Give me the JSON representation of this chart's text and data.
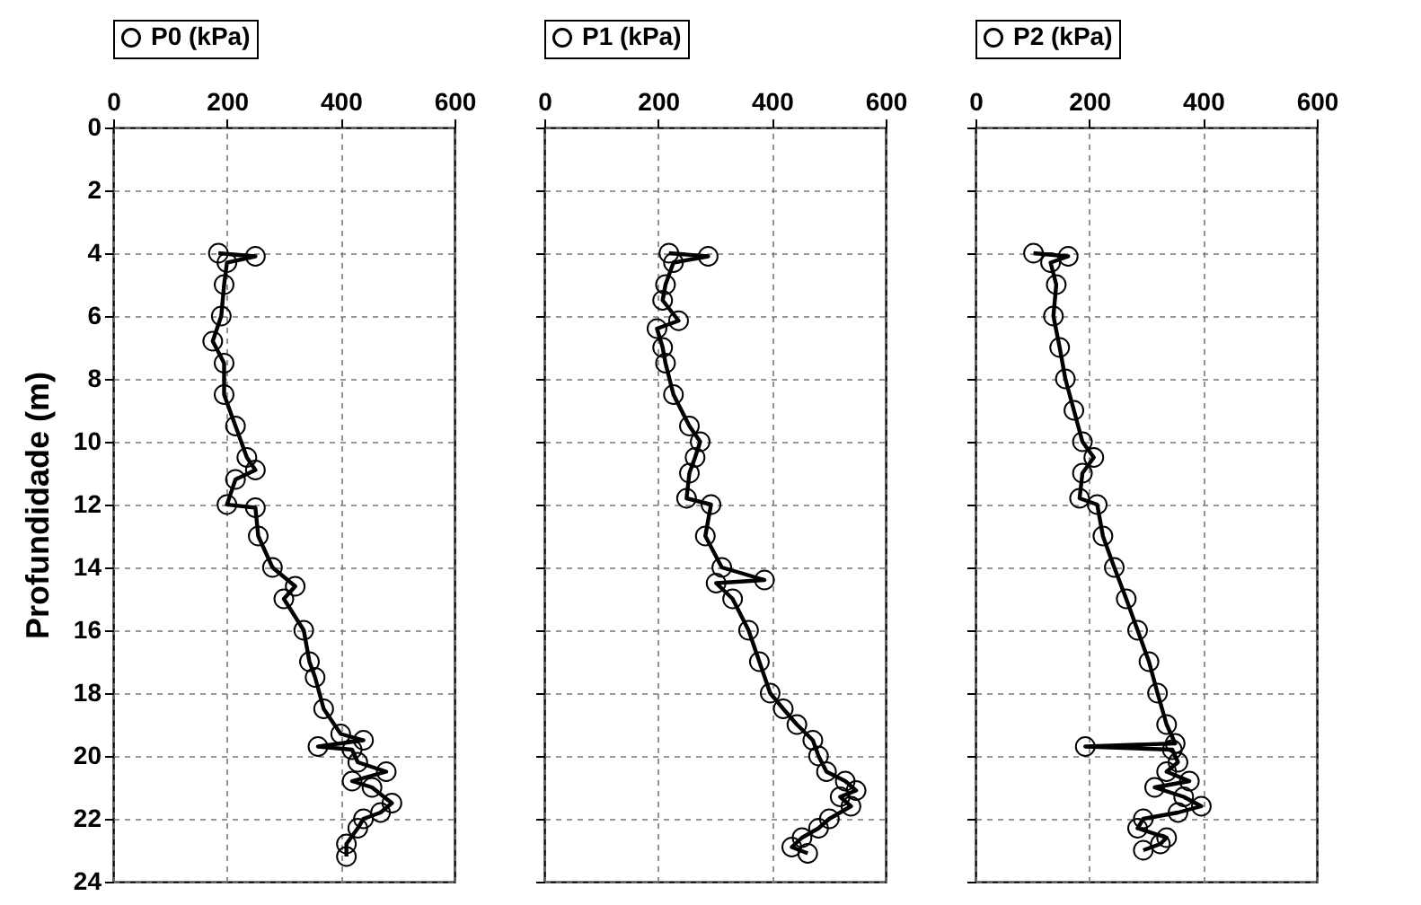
{
  "chart_data": [
    {
      "type": "line",
      "ylabel": "Profundidade (m)",
      "xlim": [
        0,
        600
      ],
      "xticks": [
        0,
        200,
        400,
        600
      ],
      "ylim": [
        24,
        0
      ],
      "yticks": [
        0,
        2,
        4,
        6,
        8,
        10,
        12,
        14,
        16,
        18,
        20,
        22,
        24
      ],
      "grid": true,
      "legend": "top",
      "marker": "circle",
      "line_style": "solid",
      "series": [
        {
          "name": "P0 (kPa)",
          "color": "#000000",
          "x": [
            185,
            250,
            200,
            195,
            190,
            175,
            195,
            195,
            215,
            235,
            250,
            215,
            200,
            250,
            255,
            280,
            320,
            300,
            335,
            345,
            355,
            370,
            400,
            440,
            360,
            420,
            430,
            480,
            420,
            455,
            490,
            470,
            440,
            430,
            410,
            410
          ],
          "values": [
            4.0,
            4.1,
            4.3,
            5,
            6,
            6.8,
            7.5,
            8.5,
            9.5,
            10.5,
            10.9,
            11.2,
            12.0,
            12.1,
            13,
            14,
            14.6,
            15,
            16,
            17,
            17.5,
            18.5,
            19.3,
            19.5,
            19.7,
            19.8,
            20.2,
            20.5,
            20.8,
            21,
            21.5,
            21.8,
            22,
            22.3,
            22.8,
            23.2
          ]
        }
      ]
    },
    {
      "type": "line",
      "xlim": [
        0,
        600
      ],
      "xticks": [
        0,
        200,
        400,
        600
      ],
      "ylim": [
        24,
        0
      ],
      "yticks": [
        0,
        2,
        4,
        6,
        8,
        10,
        12,
        14,
        16,
        18,
        20,
        22,
        24
      ],
      "grid": true,
      "legend": "top",
      "marker": "circle",
      "line_style": "solid",
      "tick_labels": "x",
      "series": [
        {
          "name": "P1 (kPa)",
          "color": "#000000",
          "x": [
            219,
            288,
            227,
            213,
            208,
            236,
            198,
            208,
            213,
            227,
            255,
            274,
            265,
            255,
            250,
            293,
            283,
            312,
            387,
            302,
            331,
            359,
            378,
            397,
            420,
            444,
            472,
            482,
            496,
            529,
            548,
            520,
            539,
            501,
            482,
            453,
            435,
            463
          ],
          "values": [
            4.0,
            4.1,
            4.3,
            5,
            5.5,
            6.15,
            6.4,
            7,
            7.5,
            8.5,
            9.5,
            10,
            10.5,
            11,
            11.8,
            12,
            13,
            14,
            14.4,
            14.5,
            15,
            16,
            17,
            18,
            18.5,
            19,
            19.5,
            20,
            20.5,
            20.8,
            21.1,
            21.3,
            21.6,
            22,
            22.3,
            22.6,
            22.9,
            23.1
          ]
        }
      ]
    },
    {
      "type": "line",
      "xlim": [
        0,
        600
      ],
      "xticks": [
        0,
        200,
        400,
        600
      ],
      "ylim": [
        24,
        0
      ],
      "yticks": [
        0,
        2,
        4,
        6,
        8,
        10,
        12,
        14,
        16,
        18,
        20,
        22,
        24
      ],
      "grid": true,
      "legend": "top",
      "marker": "circle",
      "line_style": "solid",
      "tick_labels": "x",
      "series": [
        {
          "name": "P2 (kPa)",
          "color": "#000000",
          "x": [
            102,
            163,
            132,
            142,
            137,
            148,
            158,
            173,
            188,
            208,
            188,
            183,
            214,
            224,
            244,
            265,
            285,
            305,
            320,
            336,
            351,
            193,
            346,
            356,
            336,
            376,
            315,
            366,
            397,
            356,
            295,
            285,
            336,
            325,
            295
          ],
          "values": [
            4.0,
            4.1,
            4.3,
            5,
            6,
            7,
            8,
            9,
            10,
            10.5,
            11,
            11.8,
            12,
            13,
            14,
            15,
            16,
            17,
            18,
            19,
            19.6,
            19.7,
            19.8,
            20.2,
            20.5,
            20.8,
            21,
            21.3,
            21.6,
            21.8,
            22,
            22.3,
            22.6,
            22.8,
            23.0
          ]
        }
      ]
    }
  ]
}
